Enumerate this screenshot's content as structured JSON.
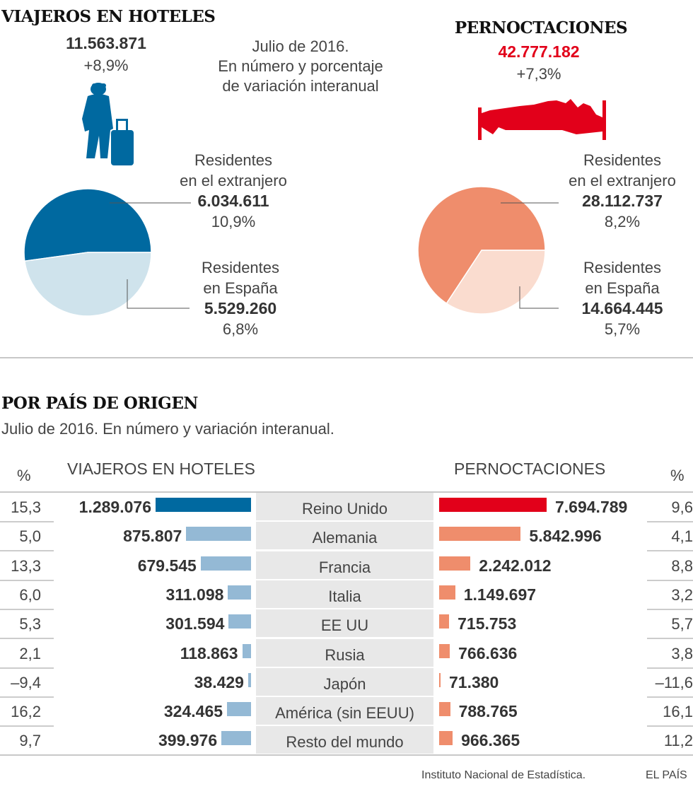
{
  "left_panel": {
    "title": "VIAJEROS EN HOTELES",
    "total": "11.563.871",
    "change": "+8,9%",
    "icon": "traveler-with-suitcase-icon",
    "foreign_label_1": "Residentes",
    "foreign_label_2": "en el extranjero",
    "foreign_value": "6.034.611",
    "foreign_change": "10,9%",
    "spain_label_1": "Residentes",
    "spain_label_2": "en España",
    "spain_value": "5.529.260",
    "spain_change": "6,8%"
  },
  "subtitle": {
    "line1": "Julio de 2016.",
    "line2": "En número y porcentaje",
    "line3": "de variación interanual"
  },
  "right_panel": {
    "title": "PERNOCTACIONES",
    "total": "42.777.182",
    "change": "+7,3%",
    "icon": "person-in-bed-icon",
    "foreign_label_1": "Residentes",
    "foreign_label_2": "en el extranjero",
    "foreign_value": "28.112.737",
    "foreign_change": "8,2%",
    "spain_label_1": "Residentes",
    "spain_label_2": "en España",
    "spain_value": "14.664.445",
    "spain_change": "5,7%"
  },
  "section2": {
    "title": "POR PAÍS DE ORIGEN",
    "subtitle": "Julio de 2016. En número y variación interanual.",
    "pct_header_left": "%",
    "left_header": "VIAJEROS EN HOTELES",
    "right_header": "PERNOCTACIONES",
    "pct_header_right": "%"
  },
  "footer": {
    "source": "Instituto Nacional de Estadística.",
    "brand": "EL PAÍS"
  },
  "colors": {
    "blue_dark": "#0069a0",
    "blue_light": "#94b9d5",
    "blue_pie_light": "#cfe3ec",
    "red": "#e2001a",
    "salmon": "#ef8d6c",
    "salmon_light": "#fadccf"
  },
  "chart_data": [
    {
      "type": "pie",
      "title": "VIAJEROS EN HOTELES",
      "slices": [
        {
          "label": "Residentes en el extranjero",
          "value": 6034611,
          "change_pct": 10.9
        },
        {
          "label": "Residentes en España",
          "value": 5529260,
          "change_pct": 6.8
        }
      ]
    },
    {
      "type": "pie",
      "title": "PERNOCTACIONES",
      "slices": [
        {
          "label": "Residentes en el extranjero",
          "value": 28112737,
          "change_pct": 8.2
        },
        {
          "label": "Residentes en España",
          "value": 14664445,
          "change_pct": 5.7
        }
      ]
    },
    {
      "type": "bar",
      "title": "POR PAÍS DE ORIGEN",
      "categories": [
        "Reino Unido",
        "Alemania",
        "Francia",
        "Italia",
        "EE UU",
        "Rusia",
        "Japón",
        "América (sin EEUU)",
        "Resto del mundo"
      ],
      "series": [
        {
          "name": "VIAJEROS EN HOTELES",
          "values": [
            1289076,
            875807,
            679545,
            311098,
            301594,
            118863,
            38429,
            324465,
            399976
          ],
          "labels": [
            "1.289.076",
            "875.807",
            "679.545",
            "311.098",
            "301.594",
            "118.863",
            "38.429",
            "324.465",
            "399.976"
          ],
          "change_pct": [
            "15,3",
            "5,0",
            "13,3",
            "6,0",
            "5,3",
            "2,1",
            "–9,4",
            "16,2",
            "9,7"
          ]
        },
        {
          "name": "PERNOCTACIONES",
          "values": [
            7694789,
            5842996,
            2242012,
            1149697,
            715753,
            766636,
            71380,
            788765,
            966365
          ],
          "labels": [
            "7.694.789",
            "5.842.996",
            "2.242.012",
            "1.149.697",
            "715.753",
            "766.636",
            "71.380",
            "788.765",
            "966.365"
          ],
          "change_pct": [
            "9,6",
            "4,1",
            "8,8",
            "3,2",
            "5,7",
            "3,8",
            "–11,6",
            "16,1",
            "11,2"
          ]
        }
      ]
    }
  ]
}
